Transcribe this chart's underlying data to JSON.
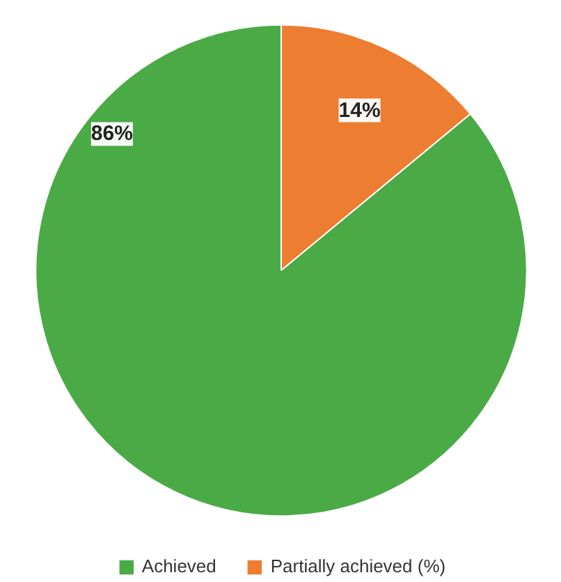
{
  "chart_data": {
    "type": "pie",
    "categories": [
      "Achieved",
      "Partially achieved (%)"
    ],
    "values": [
      86,
      14
    ],
    "colors": [
      "#4aaa46",
      "#ed7d31"
    ],
    "value_labels": [
      "86%",
      "14%"
    ],
    "legend": "bottom"
  }
}
